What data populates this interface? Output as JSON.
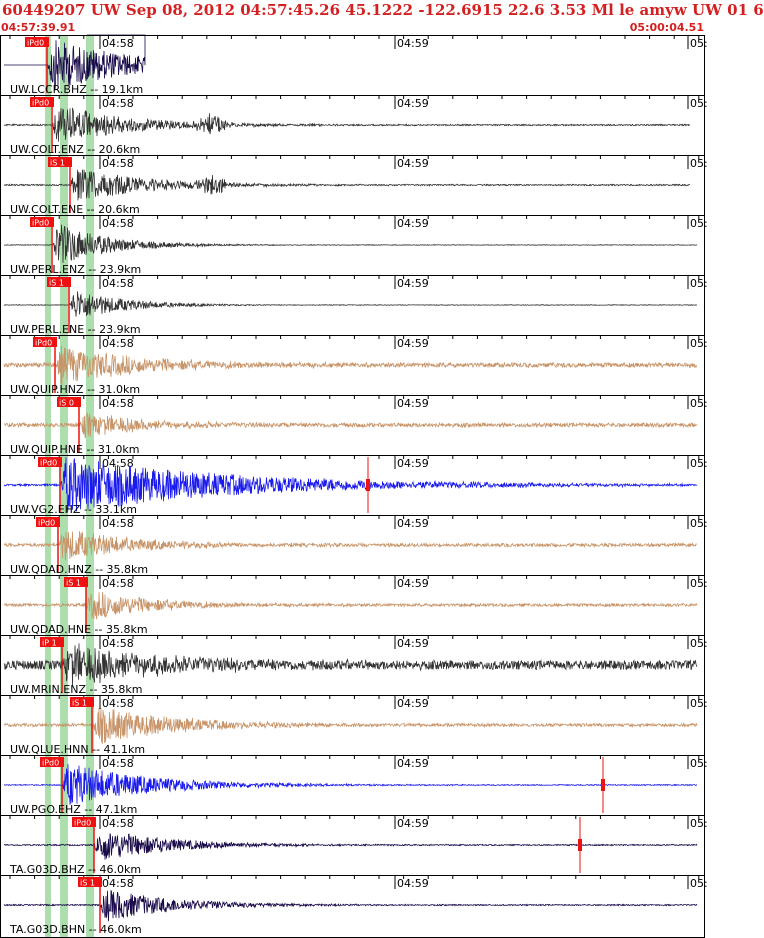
{
  "header": {
    "title": "60449207 UW Sep 08, 2012 04:57:45.26    45.1222 -122.6915 22.6 3.53 Ml le amyw UW 01    6",
    "time_start": "04:57:39.91",
    "time_end": "05:00:04.51"
  },
  "colors": {
    "title": "#d42020",
    "pick_flag": "#ee1111",
    "pick_window": "#9fd89f",
    "trace_dark": "#333333",
    "trace_brown": "#c8956a",
    "trace_blue": "#1a1aee",
    "trace_navy": "#1a0a4a"
  },
  "chart_data": {
    "type": "line",
    "x_range": [
      "04:57:39.91",
      "05:00:04.51"
    ],
    "time_ticks": [
      "04:58",
      "04:59",
      "05:"
    ],
    "traces": [
      {
        "label": "UW.LCCR.BHZ -- 19.1km",
        "pick": "iPd0",
        "color": "trace_navy"
      },
      {
        "label": "UW.COLT.ENZ -- 20.6km",
        "pick": "iPd0",
        "color": "trace_dark"
      },
      {
        "label": "UW.COLT.ENE -- 20.6km",
        "pick": "iS 1",
        "color": "trace_dark"
      },
      {
        "label": "UW.PERL.ENZ -- 23.9km",
        "pick": "iPd0",
        "color": "trace_dark"
      },
      {
        "label": "UW.PERL.ENE -- 23.9km",
        "pick": "iS 1",
        "color": "trace_dark"
      },
      {
        "label": "UW.QUIP.HNZ -- 31.0km",
        "pick": "iPd0",
        "color": "trace_brown"
      },
      {
        "label": "UW.QUIP.HNE -- 31.0km",
        "pick": "iS 0",
        "color": "trace_brown"
      },
      {
        "label": "UW.VG2.EHZ -- 33.1km",
        "pick": "iPd0",
        "color": "trace_blue"
      },
      {
        "label": "UW.QDAD.HNZ -- 35.8km",
        "pick": "iPd0",
        "color": "trace_brown"
      },
      {
        "label": "UW.QDAD.HNE -- 35.8km",
        "pick": "iS 1",
        "color": "trace_brown"
      },
      {
        "label": "UW.MRIN.ENZ -- 35.8km",
        "pick": "iP 1",
        "color": "trace_dark"
      },
      {
        "label": "UW.QLUE.HNN -- 41.1km",
        "pick": "iS 1",
        "color": "trace_brown"
      },
      {
        "label": "UW.PGO.EHZ -- 47.1km",
        "pick": "iPd0",
        "color": "trace_blue"
      },
      {
        "label": "TA.G03D.BHZ -- 46.0km",
        "pick": "iPd0",
        "color": "trace_navy"
      },
      {
        "label": "TA.G03D.BHN -- 46.0km",
        "pick": "iS 1",
        "color": "trace_navy"
      }
    ]
  }
}
